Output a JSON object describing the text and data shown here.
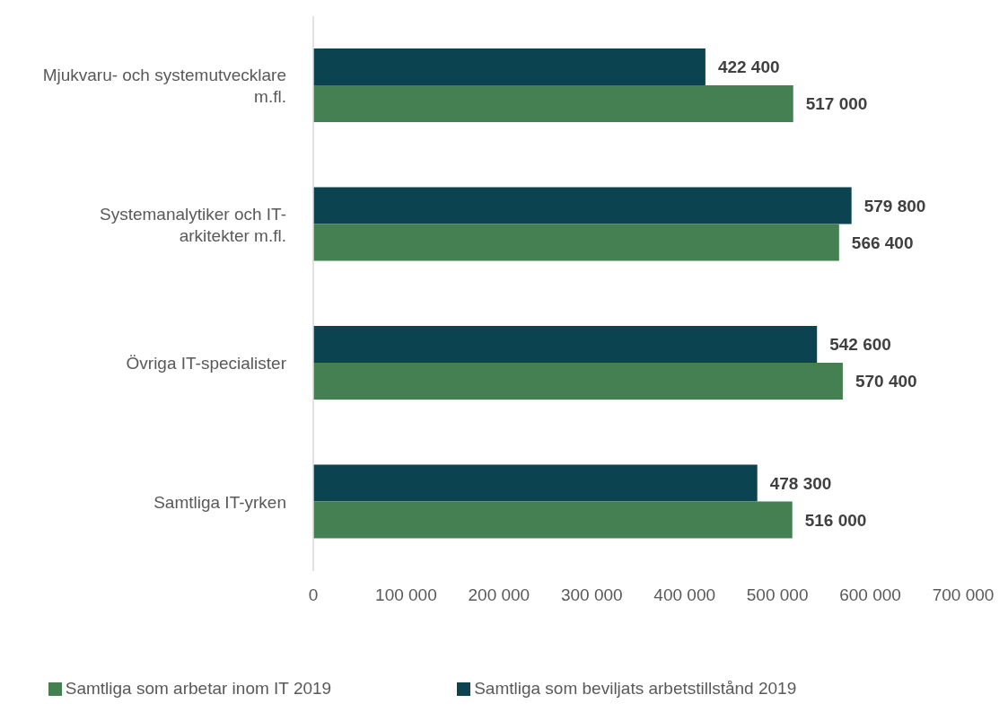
{
  "chart_data": {
    "type": "bar",
    "orientation": "horizontal",
    "categories": [
      "Mjukvaru- och systemutvecklare m.fl.",
      "Systemanalytiker och IT-arkitekter m.fl.",
      "Övriga IT-specialister",
      "Samtliga IT-yrken"
    ],
    "series": [
      {
        "name": "Samtliga som beviljats arbetstillstånd 2019",
        "color": "#0b4450",
        "values": [
          422400,
          579800,
          542600,
          478300
        ],
        "value_labels": [
          "422 400",
          "579 800",
          "542 600",
          "478 300"
        ]
      },
      {
        "name": "Samtliga som arbetar inom IT 2019",
        "color": "#458052",
        "values": [
          517000,
          566400,
          570400,
          516000
        ],
        "value_labels": [
          "517 000",
          "566 400",
          "570 400",
          "516 000"
        ]
      }
    ],
    "xlim": [
      0,
      700000
    ],
    "xticks": [
      0,
      {
        "value": 100000,
        "label": "100 000"
      },
      {
        "value": 200000,
        "label": "200 000"
      },
      {
        "value": 300000,
        "label": "300 000"
      },
      {
        "value": 400000,
        "label": "400 000"
      },
      {
        "value": 500000,
        "label": "500 000"
      },
      {
        "value": 600000,
        "label": "600 000"
      },
      {
        "value": 700000,
        "label": "700 000"
      }
    ],
    "grid": false,
    "legend": "bottom"
  }
}
